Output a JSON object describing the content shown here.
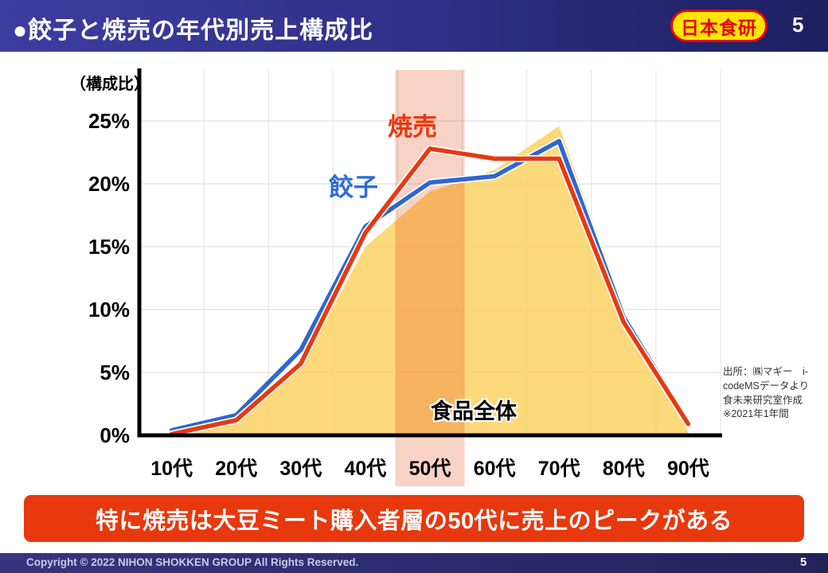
{
  "header": {
    "title": "●餃子と焼売の年代別売上構成比",
    "logo_text": "日本食研",
    "page_number": "5"
  },
  "chart_data": {
    "type": "line",
    "categories": [
      "10代",
      "20代",
      "30代",
      "40代",
      "50代",
      "60代",
      "70代",
      "80代",
      "90代"
    ],
    "series": [
      {
        "name": "餃子",
        "kind": "line",
        "color": "#2F66D0",
        "values": [
          0.4,
          1.6,
          6.8,
          16.6,
          20.1,
          20.6,
          23.4,
          9.4,
          1.0
        ]
      },
      {
        "name": "焼売",
        "kind": "line",
        "color": "#E63A10",
        "values": [
          0.1,
          1.2,
          5.7,
          16.1,
          22.8,
          22.0,
          22.0,
          9.0,
          0.9
        ]
      },
      {
        "name": "食品全体",
        "kind": "area",
        "color": "#FBD264",
        "values": [
          0.1,
          0.9,
          5.4,
          15.0,
          19.4,
          21.1,
          24.6,
          10.0,
          0.3
        ]
      }
    ],
    "ylabel": "（構成比）",
    "y_ticks": [
      "0%",
      "5%",
      "10%",
      "15%",
      "20%",
      "25%"
    ],
    "ylim": [
      0,
      29
    ],
    "grid": true,
    "legend_position": "inline-labels",
    "highlight_category": "50代",
    "highlight_color": "#F9D2C6"
  },
  "source_note": {
    "lines": [
      "出所：㈱マギー　i-",
      "codeMSデータより",
      "食未来研究室作成",
      "※2021年1年間"
    ]
  },
  "banner": {
    "text": "特に焼売は大豆ミート購入者層の50代に売上のピークがある",
    "color": "#E8380D"
  },
  "footer": {
    "copyright": "Copyright © 2022 NIHON SHOKKEN GROUP All Rights Reserved.",
    "page_number": "5"
  }
}
